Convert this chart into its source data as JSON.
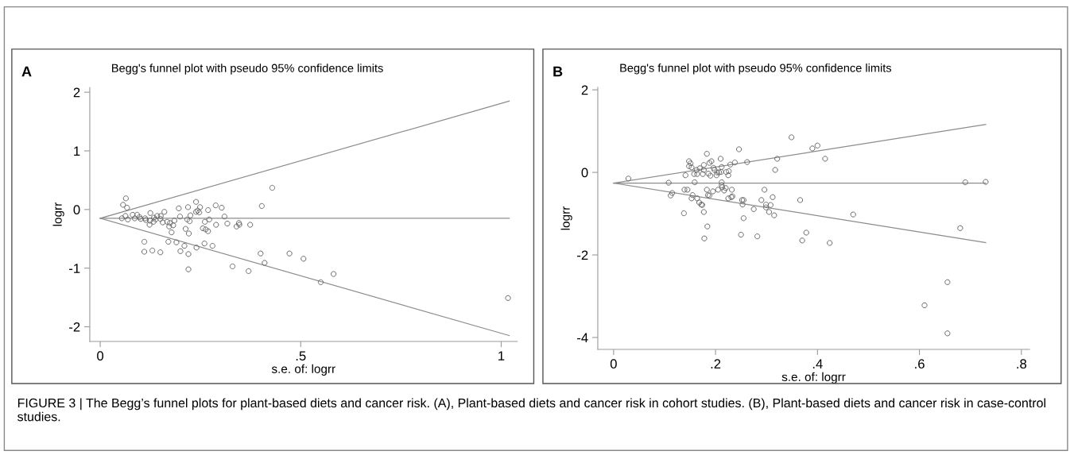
{
  "chart_data": [
    {
      "type": "scatter",
      "title": "A",
      "subtitle": "Begg's funnel plot with pseudo 95% confidence limits",
      "xlabel": "s.e. of: logrr",
      "ylabel": "logrr",
      "xlim": [
        -0.026,
        1.04
      ],
      "ylim": [
        -2.25,
        2.08
      ],
      "xticks": [
        0,
        {
          "value": 0.5,
          "label": ".5"
        },
        1
      ],
      "yticks": [
        -2,
        -1,
        0,
        1,
        2
      ],
      "marker": "circle",
      "grid": false,
      "legend": false,
      "annotations": [
        "FIGURE 3 | The Begg’s funnel plots for plant-based diets and cancer risk. (A), Plant-based diets and cancer risk in cohort studies. (B), Plant-based diets and cancer risk in case-control studies."
      ],
      "series": [
        {
          "type": "line",
          "marker": "none",
          "color": "#8c8c8c",
          "x": [
            0,
            1.02
          ],
          "values": [
            -0.15,
            1.85
          ]
        },
        {
          "type": "line",
          "marker": "none",
          "color": "#8c8c8c",
          "x": [
            0,
            1.02
          ],
          "values": [
            -0.15,
            -0.15
          ]
        },
        {
          "type": "line",
          "marker": "none",
          "color": "#8c8c8c",
          "x": [
            0,
            1.02
          ],
          "values": [
            -0.15,
            -2.15
          ]
        },
        {
          "color": "#666666",
          "x": [
            0.064,
            0.057,
            0.067,
            0.054,
            0.063,
            0.069,
            0.081,
            0.086,
            0.092,
            0.098,
            0.101,
            0.112,
            0.114,
            0.123,
            0.125,
            0.124,
            0.133,
            0.134,
            0.138,
            0.142,
            0.151,
            0.15,
            0.156,
            0.16,
            0.167,
            0.172,
            0.174,
            0.178,
            0.182,
            0.185,
            0.196,
            0.199,
            0.213,
            0.217,
            0.219,
            0.221,
            0.223,
            0.225,
            0.239,
            0.239,
            0.243,
            0.247,
            0.249,
            0.256,
            0.261,
            0.263,
            0.269,
            0.269,
            0.272,
            0.288,
            0.289,
            0.303,
            0.31,
            0.317,
            0.34,
            0.346,
            0.347,
            0.374,
            0.403,
            0.429,
            0.11,
            0.11,
            0.13,
            0.15,
            0.17,
            0.19,
            0.2,
            0.21,
            0.22,
            0.22,
            0.24,
            0.26,
            0.28,
            0.33,
            0.37,
            0.4,
            0.41,
            0.472,
            0.507,
            0.55,
            0.582,
            1.017
          ],
          "values": [
            0.19,
            0.08,
            0.03,
            -0.15,
            -0.11,
            -0.17,
            -0.09,
            -0.15,
            -0.09,
            -0.13,
            -0.16,
            -0.15,
            -0.18,
            -0.26,
            -0.06,
            -0.19,
            -0.21,
            -0.14,
            -0.17,
            -0.11,
            -0.11,
            -0.16,
            -0.22,
            -0.04,
            -0.21,
            -0.29,
            -0.23,
            -0.39,
            -0.27,
            -0.19,
            0.02,
            -0.12,
            -0.33,
            -0.17,
            0.04,
            -0.41,
            -0.2,
            -0.1,
            0.13,
            -0.04,
            -0.02,
            -0.05,
            0.04,
            -0.32,
            -0.21,
            -0.34,
            -0.37,
            -0.01,
            -0.17,
            0.07,
            -0.26,
            0.03,
            -0.12,
            -0.24,
            -0.29,
            -0.23,
            -0.26,
            -0.26,
            0.06,
            0.37,
            -0.55,
            -0.72,
            -0.7,
            -0.73,
            -0.55,
            -0.56,
            -0.71,
            -0.62,
            -0.76,
            -1.02,
            -0.65,
            -0.58,
            -0.62,
            -0.97,
            -1.05,
            -0.75,
            -0.91,
            -0.75,
            -0.84,
            -1.24,
            -1.1,
            -1.51
          ]
        }
      ]
    },
    {
      "type": "scatter",
      "title": "B",
      "subtitle": "Begg's funnel plot with pseudo 95% confidence limits",
      "xlabel": "s.e. of: logrr",
      "ylabel": "logrr",
      "xlim": [
        -0.031,
        0.816
      ],
      "ylim": [
        -4.29,
        2.06
      ],
      "xticks": [
        0,
        {
          "value": 0.2,
          "label": ".2"
        },
        {
          "value": 0.4,
          "label": ".4"
        },
        {
          "value": 0.6,
          "label": ".6"
        },
        {
          "value": 0.8,
          "label": ".8"
        }
      ],
      "yticks": [
        -4,
        -2,
        0,
        2
      ],
      "marker": "circle",
      "grid": false,
      "legend": false,
      "series": [
        {
          "type": "line",
          "marker": "none",
          "color": "#8c8c8c",
          "x": [
            0,
            0.73
          ],
          "values": [
            -0.26,
            1.16
          ]
        },
        {
          "type": "line",
          "marker": "none",
          "color": "#8c8c8c",
          "x": [
            0,
            0.73
          ],
          "values": [
            -0.26,
            -0.26
          ]
        },
        {
          "type": "line",
          "marker": "none",
          "color": "#8c8c8c",
          "x": [
            0,
            0.73
          ],
          "values": [
            -0.26,
            -1.7
          ]
        },
        {
          "color": "#666666",
          "x": [
            0.029,
            0.108,
            0.112,
            0.115,
            0.138,
            0.139,
            0.145,
            0.148,
            0.151,
            0.148,
            0.153,
            0.141,
            0.153,
            0.155,
            0.159,
            0.158,
            0.163,
            0.164,
            0.164,
            0.168,
            0.169,
            0.172,
            0.174,
            0.175,
            0.177,
            0.177,
            0.177,
            0.178,
            0.183,
            0.183,
            0.184,
            0.185,
            0.188,
            0.186,
            0.188,
            0.19,
            0.192,
            0.195,
            0.196,
            0.198,
            0.202,
            0.203,
            0.205,
            0.207,
            0.21,
            0.211,
            0.212,
            0.212,
            0.212,
            0.213,
            0.217,
            0.22,
            0.221,
            0.225,
            0.226,
            0.225,
            0.229,
            0.231,
            0.232,
            0.233,
            0.238,
            0.246,
            0.25,
            0.252,
            0.255,
            0.253,
            0.255,
            0.262,
            0.275,
            0.282,
            0.29,
            0.296,
            0.299,
            0.299,
            0.308,
            0.305,
            0.312,
            0.315,
            0.317,
            0.321,
            0.349,
            0.366,
            0.37,
            0.378,
            0.39,
            0.4,
            0.415,
            0.424,
            0.47,
            0.61,
            0.655,
            0.655,
            0.68,
            0.69,
            0.73
          ],
          "values": [
            -0.15,
            -0.25,
            -0.56,
            -0.5,
            -0.99,
            -0.42,
            -0.42,
            0.27,
            0.22,
            0.15,
            0.12,
            -0.07,
            -0.63,
            -0.55,
            -0.24,
            -0.04,
            0.06,
            -0.04,
            -0.63,
            -0.73,
            0.1,
            -0.78,
            -0.79,
            -0.04,
            0.06,
            0.18,
            -0.96,
            -1.6,
            0.45,
            -0.42,
            -1.31,
            -0.55,
            -0.56,
            -0.03,
            0.23,
            -0.08,
            0.27,
            -0.46,
            0.11,
            0.06,
            -0.07,
            0.0,
            -0.42,
            0.0,
            0.33,
            0.01,
            0.13,
            -0.24,
            -0.31,
            -0.36,
            -0.44,
            -0.38,
            0.01,
            -0.07,
            0.03,
            -0.63,
            0.19,
            -0.6,
            -0.42,
            -0.58,
            0.24,
            0.56,
            -1.51,
            -0.67,
            -0.67,
            -0.78,
            -1.11,
            0.25,
            -0.89,
            -1.55,
            -0.67,
            -0.42,
            -0.78,
            -0.85,
            -0.79,
            -0.96,
            -0.6,
            -1.04,
            0.06,
            0.33,
            0.85,
            -0.67,
            -1.65,
            -1.46,
            0.58,
            0.65,
            0.33,
            -1.71,
            -1.02,
            -3.22,
            -2.66,
            -3.9,
            -1.35,
            -0.24,
            -0.23
          ]
        }
      ]
    }
  ]
}
